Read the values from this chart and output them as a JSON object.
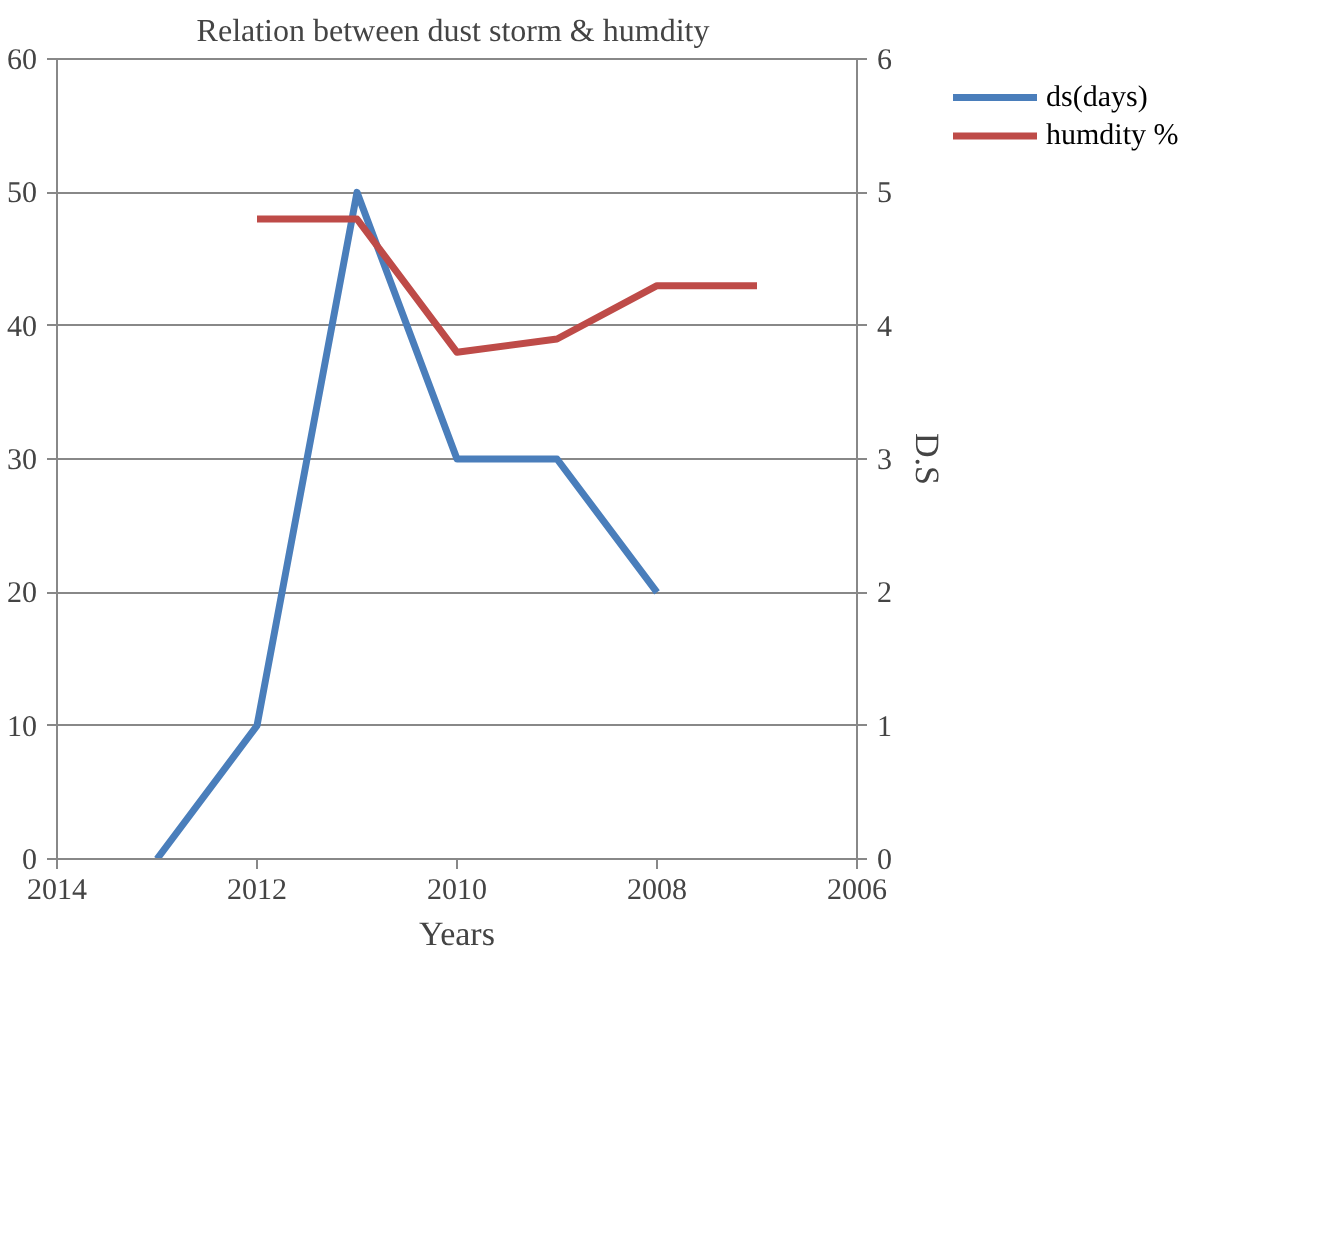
{
  "chart_data": {
    "type": "line",
    "title": "Relation between dust storm &  humdity",
    "xlabel": "Years",
    "y2label": "D.S",
    "xlim": [
      2014,
      2006
    ],
    "xticks": [
      2014,
      2012,
      2010,
      2008,
      2006
    ],
    "ylim": [
      0,
      60
    ],
    "yticks": [
      0,
      10,
      20,
      30,
      40,
      50,
      60
    ],
    "y2lim": [
      0,
      6
    ],
    "y2ticks": [
      0,
      1,
      2,
      3,
      4,
      5,
      6
    ],
    "grid": "y",
    "legend": "right",
    "marker": "none",
    "line_style": "solid",
    "series": [
      {
        "name": "ds(days)",
        "color": "#4a7ebb",
        "axis": "y2",
        "x": [
          2013,
          2012,
          2011,
          2010,
          2009,
          2008
        ],
        "values": [
          0,
          1,
          5,
          3,
          3,
          2
        ]
      },
      {
        "name": "humdity %",
        "color": "#be4b48",
        "x": [
          2012,
          2011,
          2010,
          2009,
          2008,
          2007
        ],
        "values": [
          48,
          48,
          38,
          39,
          43,
          43
        ]
      }
    ]
  }
}
